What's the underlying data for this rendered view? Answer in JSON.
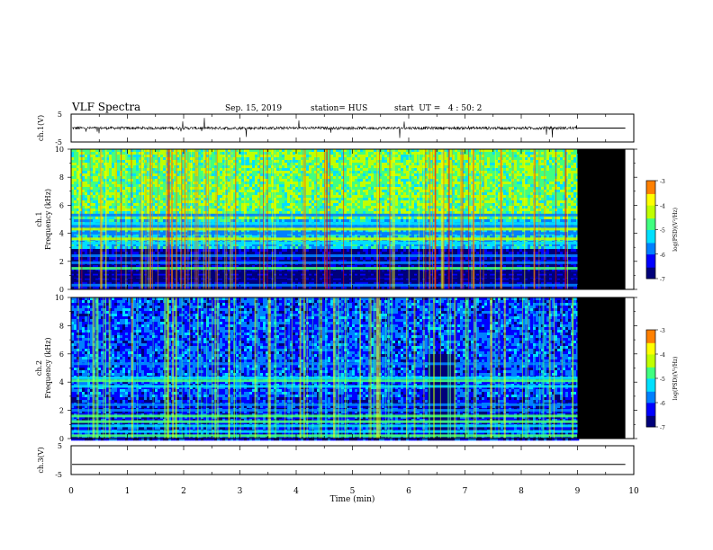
{
  "header": {
    "title": "VLF Spectra",
    "date": "Sep. 15, 2019",
    "station": "station= HUS",
    "start_time": "start  UT =   4 : 50: 2"
  },
  "colors": {
    "background": "#ffffff",
    "axis": "#000000",
    "no_data": "#000000",
    "colormap": [
      "#00007a",
      "#0000ff",
      "#0080ff",
      "#00e0ff",
      "#40ff80",
      "#c0ff00",
      "#ffff00",
      "#ff8000",
      "#ff0000",
      "#ffffff"
    ]
  },
  "chart_data": [
    {
      "type": "line",
      "panel": "ch1-waveform",
      "ylabel": "ch.1(V)",
      "y_ticks": [
        "5",
        "-5"
      ],
      "ylim": [
        -5,
        5
      ],
      "data_end_min": 9.0,
      "flat_value_after_end": 0
    },
    {
      "type": "heatmap",
      "panel": "ch1-spectrogram",
      "ylabel_line1": "ch.1",
      "ylabel_line2": "Frequency (kHz)",
      "y_ticks": [
        "0",
        "2",
        "4",
        "6",
        "8",
        "10"
      ],
      "ylim": [
        0,
        10
      ],
      "data_end_min": 9.0,
      "background_level": -4.8,
      "bands_khz": [
        {
          "freq": 0.3,
          "level": -6.0
        },
        {
          "freq": 0.6,
          "level": -6.6
        },
        {
          "freq": 0.9,
          "level": -6.6
        },
        {
          "freq": 1.2,
          "level": -6.6
        },
        {
          "freq": 1.5,
          "level": -4.7
        },
        {
          "freq": 1.9,
          "level": -5.8
        },
        {
          "freq": 2.4,
          "level": -6.0
        },
        {
          "freq": 3.3,
          "level": -5.2
        },
        {
          "freq": 3.6,
          "level": -4.4
        },
        {
          "freq": 4.0,
          "level": -5.6
        },
        {
          "freq": 4.3,
          "level": -4.5
        },
        {
          "freq": 4.5,
          "level": -5.6
        },
        {
          "freq": 4.7,
          "level": -5.2
        },
        {
          "freq": 5.3,
          "level": -5.6
        }
      ],
      "colorbar": {
        "label": "log(PSD)(V²/Hz)",
        "ticks": [
          "-3",
          "-4",
          "-5",
          "-6",
          "-7"
        ],
        "range": [
          -7,
          -3
        ]
      }
    },
    {
      "type": "heatmap",
      "panel": "ch2-spectrogram",
      "ylabel_line1": "ch.2",
      "ylabel_line2": "Frequency (kHz)",
      "y_ticks": [
        "0",
        "2",
        "4",
        "6",
        "8",
        "10"
      ],
      "ylim": [
        0,
        10
      ],
      "data_end_min": 9.0,
      "background_level": -6.0,
      "quiet_interval_min": [
        6.3,
        6.8
      ],
      "bands_khz": [
        {
          "freq": 0.2,
          "level": -5.0
        },
        {
          "freq": 0.5,
          "level": -5.4
        },
        {
          "freq": 0.9,
          "level": -5.4
        },
        {
          "freq": 1.2,
          "level": -5.0
        },
        {
          "freq": 1.6,
          "level": -4.8
        },
        {
          "freq": 2.0,
          "level": -5.6
        },
        {
          "freq": 2.4,
          "level": -5.8
        },
        {
          "freq": 3.7,
          "level": -5.4
        },
        {
          "freq": 4.1,
          "level": -5.0
        },
        {
          "freq": 4.3,
          "level": -5.4
        },
        {
          "freq": 5.3,
          "level": -5.8
        }
      ],
      "colorbar": {
        "label": "log(PSD)(V²/Hz)",
        "ticks": [
          "-3",
          "-4",
          "-5",
          "-6",
          "-7"
        ],
        "range": [
          -7,
          -3
        ]
      }
    },
    {
      "type": "line",
      "panel": "ch3-waveform",
      "ylabel": "ch.3(V)",
      "y_ticks": [
        "5",
        "-5"
      ],
      "ylim": [
        -5,
        5
      ],
      "constant_value": -1.5
    }
  ],
  "x_axis": {
    "label": "Time (min)",
    "ticks": [
      "0",
      "1",
      "2",
      "3",
      "4",
      "5",
      "6",
      "7",
      "8",
      "9",
      "10"
    ],
    "xlim": [
      0,
      10
    ]
  }
}
